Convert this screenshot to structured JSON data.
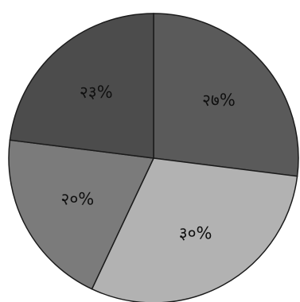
{
  "chart_data": {
    "type": "pie",
    "title": "",
    "slices": [
      {
        "label": "२७%",
        "value": 27,
        "color": "#5a5a5a"
      },
      {
        "label": "३०%",
        "value": 30,
        "color": "#b2b2b2"
      },
      {
        "label": "२०%",
        "value": 20,
        "color": "#7b7b7b"
      },
      {
        "label": "२३%",
        "value": 23,
        "color": "#4c4c4c"
      }
    ],
    "start_angle_deg": 0,
    "direction": "clockwise",
    "legend": "none"
  }
}
